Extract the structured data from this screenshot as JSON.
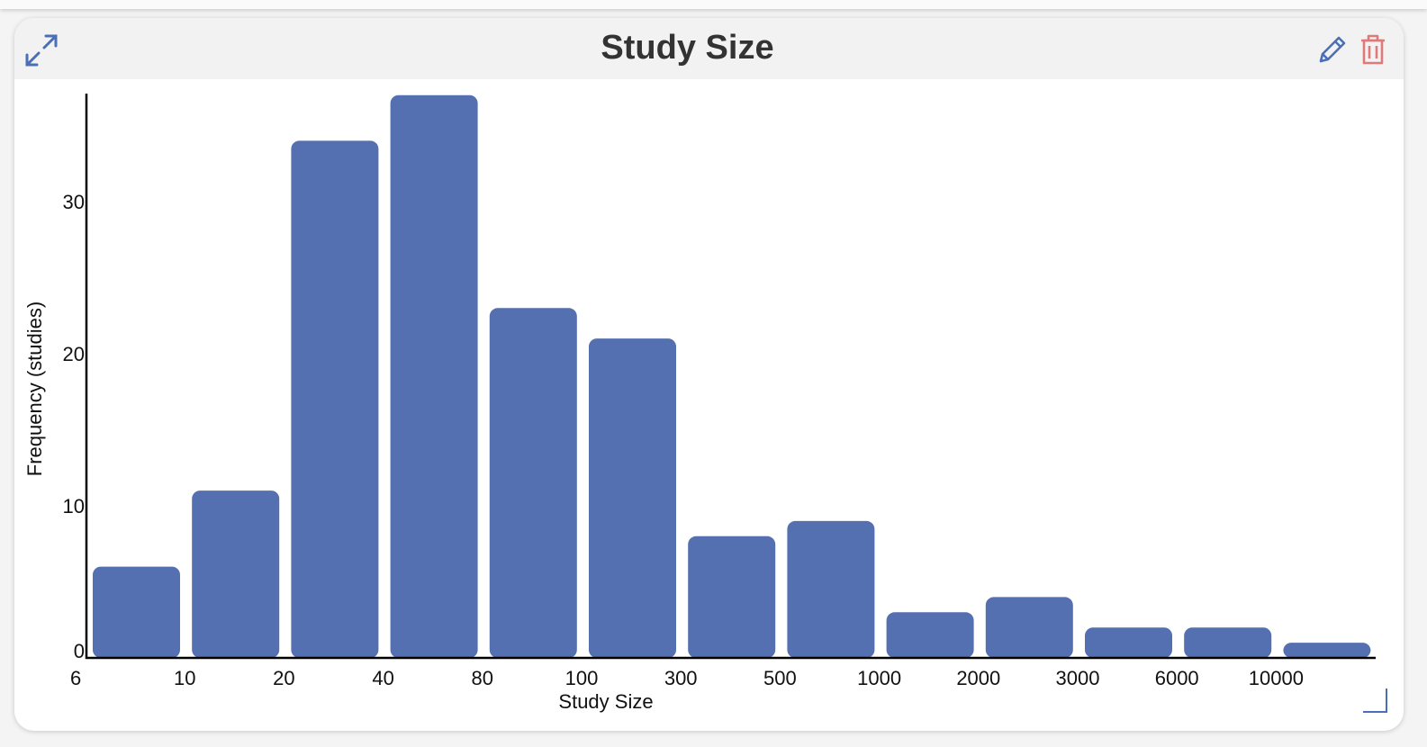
{
  "panel": {
    "title": "Study Size"
  },
  "icons": {
    "expand": "expand-arrows-icon",
    "edit": "pencil-icon",
    "delete": "trash-icon",
    "resize": "resize-corner-icon"
  },
  "colors": {
    "bar": "#5470b1",
    "edit_icon": "#4a6fb5",
    "delete_icon": "#e07a7a",
    "expand_icon": "#4a6fb5"
  },
  "chart_data": {
    "type": "bar",
    "title": "Study Size",
    "xlabel": "Study Size",
    "ylabel": "Frequency (studies)",
    "bin_edges": [
      "6",
      "10",
      "20",
      "40",
      "80",
      "100",
      "300",
      "500",
      "1000",
      "2000",
      "3000",
      "6000",
      "10000"
    ],
    "values": [
      6,
      11,
      34,
      37,
      23,
      21,
      8,
      9,
      3,
      4,
      2,
      2,
      1
    ],
    "yticks": [
      "0",
      "10",
      "20",
      "30"
    ],
    "ylim": [
      0,
      37
    ],
    "grid": false,
    "legend": "none"
  }
}
